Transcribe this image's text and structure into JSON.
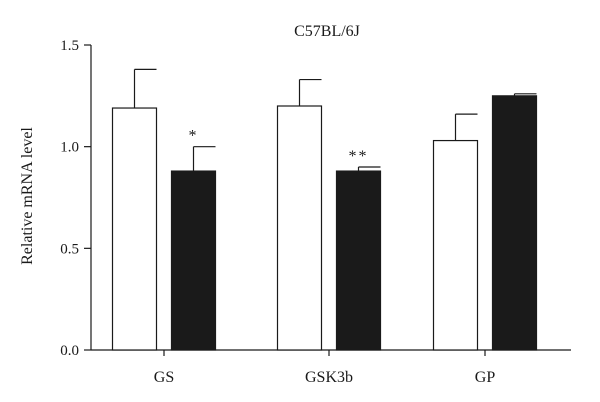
{
  "chart_data": {
    "type": "bar",
    "title": "C57BL/6J",
    "xlabel": "",
    "ylabel": "Relative mRNA level",
    "ylim": [
      0,
      1.5
    ],
    "yticks": [
      "0.0",
      "0.5",
      "1.0",
      "1.5"
    ],
    "ytick_values": [
      0,
      0.5,
      1.0,
      1.5
    ],
    "categories": [
      "GS",
      "GSK3b",
      "GP"
    ],
    "series": [
      {
        "fill": "#ffffff",
        "values": [
          1.19,
          1.2,
          1.03
        ],
        "errors": [
          0.19,
          0.13,
          0.13
        ],
        "annotations": [
          "",
          "",
          ""
        ]
      },
      {
        "fill": "#1a1a1a",
        "values": [
          0.88,
          0.88,
          1.25
        ],
        "errors": [
          0.12,
          0.02,
          0.01
        ],
        "annotations": [
          "*",
          "**",
          ""
        ]
      }
    ],
    "grid": false,
    "legend": "none"
  }
}
